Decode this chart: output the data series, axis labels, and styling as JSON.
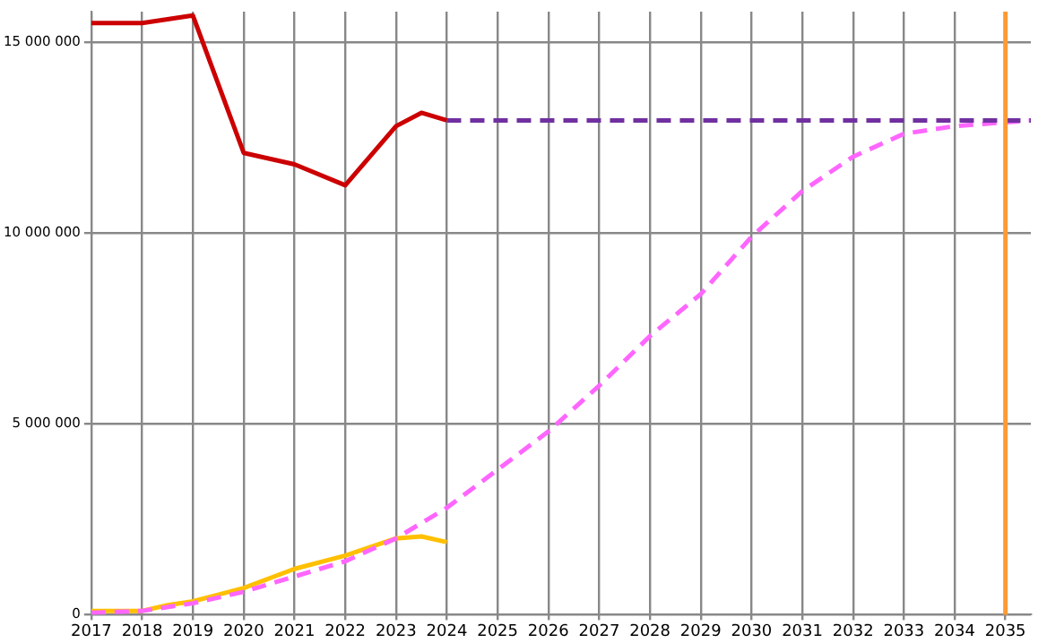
{
  "chart_data": {
    "type": "line",
    "marker": "none",
    "grid": true,
    "legend": false,
    "xlim": [
      2017,
      2035.5
    ],
    "xticks": [
      2017,
      2018,
      2019,
      2020,
      2021,
      2022,
      2023,
      2024,
      2025,
      2026,
      2027,
      2028,
      2029,
      2030,
      2031,
      2032,
      2033,
      2034,
      2035
    ],
    "ylim": [
      0,
      15800000
    ],
    "yticks": [
      0,
      {
        "value": 5000000,
        "label": "5 000 000"
      },
      {
        "value": 10000000,
        "label": "10 000 000"
      },
      {
        "value": 15000000,
        "label": "15 000 000"
      }
    ],
    "series": [
      {
        "color": "#cc0000",
        "line_style": "solid",
        "x": [
          2017,
          2018,
          2019,
          2020,
          2021,
          2022,
          2023,
          2023.5,
          2024
        ],
        "values": [
          15500000,
          15500000,
          15700000,
          12100000,
          11800000,
          11250000,
          12800000,
          13150000,
          12950000
        ]
      },
      {
        "color": "#7030a0",
        "line_style": "dashed",
        "x": [
          2024,
          2035.5
        ],
        "values": [
          12950000,
          12950000
        ]
      },
      {
        "color": "#ff66ff",
        "line_style": "dashed",
        "x": [
          2017,
          2018,
          2019,
          2020,
          2021,
          2022,
          2023,
          2024,
          2025,
          2026,
          2027,
          2028,
          2029,
          2030,
          2031,
          2032,
          2033,
          2034,
          2035,
          2035.5
        ],
        "values": [
          50000,
          100000,
          300000,
          600000,
          1000000,
          1400000,
          2000000,
          2800000,
          3800000,
          4800000,
          6000000,
          7300000,
          8400000,
          9900000,
          11100000,
          12000000,
          12600000,
          12800000,
          12900000,
          12950000
        ]
      },
      {
        "color": "#ffc000",
        "line_style": "solid",
        "x": [
          2017,
          2018,
          2018.5,
          2019,
          2020,
          2021,
          2022,
          2023,
          2023.5,
          2024
        ],
        "values": [
          100000,
          100000,
          250000,
          350000,
          700000,
          1200000,
          1550000,
          2000000,
          2050000,
          1900000
        ]
      }
    ],
    "ref_lines": [
      {
        "axis": "x",
        "value": 2035,
        "color": "#ff9933"
      }
    ]
  }
}
